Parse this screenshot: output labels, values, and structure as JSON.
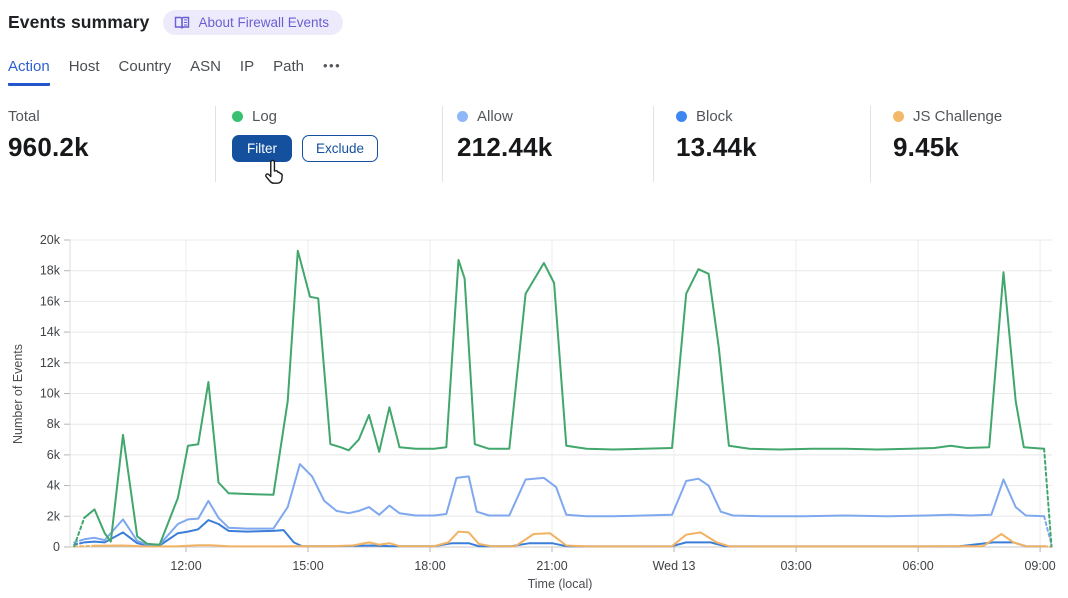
{
  "header": {
    "title": "Events summary",
    "badge_label": "About Firewall Events",
    "badge_icon": "book-icon"
  },
  "tabs": {
    "items": [
      {
        "label": "Action",
        "active": true
      },
      {
        "label": "Host",
        "active": false
      },
      {
        "label": "Country",
        "active": false
      },
      {
        "label": "ASN",
        "active": false
      },
      {
        "label": "IP",
        "active": false
      },
      {
        "label": "Path",
        "active": false
      }
    ],
    "overflow_label": "•••"
  },
  "stats": [
    {
      "label": "Total",
      "value": "960.2k"
    },
    {
      "label": "Log",
      "dot_color": "#38c172",
      "filter_label": "Filter",
      "exclude_label": "Exclude"
    },
    {
      "label": "Allow",
      "value": "212.44k",
      "dot_color": "#8fb7f8"
    },
    {
      "label": "Block",
      "value": "13.44k",
      "dot_color": "#3e87f2"
    },
    {
      "label": "JS Challenge",
      "value": "9.45k",
      "dot_color": "#f2b968"
    }
  ],
  "cursor_icon": "hand-pointer-icon",
  "chart_data": {
    "type": "line",
    "xlabel": "Time (local)",
    "ylabel": "Number of Events",
    "ylim": [
      0,
      20000
    ],
    "value_unit": "thousands of events",
    "x_unit": "hours (local clock, 24 = Wed 13 00:00)",
    "grid": true,
    "legend_position": "stat-cards-above",
    "yticks": [
      {
        "v": 0,
        "label": "0"
      },
      {
        "v": 2,
        "label": "2k"
      },
      {
        "v": 4,
        "label": "4k"
      },
      {
        "v": 6,
        "label": "6k"
      },
      {
        "v": 8,
        "label": "8k"
      },
      {
        "v": 10,
        "label": "10k"
      },
      {
        "v": 12,
        "label": "12k"
      },
      {
        "v": 14,
        "label": "14k"
      },
      {
        "v": 16,
        "label": "16k"
      },
      {
        "v": 18,
        "label": "18k"
      },
      {
        "v": 20,
        "label": "20k"
      }
    ],
    "xticks": [
      {
        "t": 12,
        "label": "12:00"
      },
      {
        "t": 15,
        "label": "15:00"
      },
      {
        "t": 18,
        "label": "18:00"
      },
      {
        "t": 21,
        "label": "21:00"
      },
      {
        "t": 24,
        "label": "Wed 13"
      },
      {
        "t": 27,
        "label": "03:00"
      },
      {
        "t": 30,
        "label": "06:00"
      },
      {
        "t": 33,
        "label": "09:00"
      }
    ],
    "series": [
      {
        "name": "Block",
        "color": "#3b7ed9",
        "points": [
          [
            9.25,
            0.15
          ],
          [
            9.5,
            0.3
          ],
          [
            9.75,
            0.35
          ],
          [
            10.0,
            0.3
          ],
          [
            10.45,
            0.95
          ],
          [
            10.8,
            0.25
          ],
          [
            11.05,
            0.1
          ],
          [
            11.35,
            0.1
          ],
          [
            11.8,
            0.9
          ],
          [
            12.05,
            1.0
          ],
          [
            12.3,
            1.15
          ],
          [
            12.55,
            1.75
          ],
          [
            12.8,
            1.5
          ],
          [
            13.05,
            1.05
          ],
          [
            13.5,
            1.0
          ],
          [
            14.15,
            1.05
          ],
          [
            14.4,
            1.1
          ],
          [
            14.65,
            0.3
          ],
          [
            14.85,
            0.06
          ],
          [
            15.5,
            0.05
          ],
          [
            16.25,
            0.08
          ],
          [
            16.55,
            0.1
          ],
          [
            17.0,
            0.06
          ],
          [
            18.1,
            0.05
          ],
          [
            18.55,
            0.25
          ],
          [
            18.95,
            0.25
          ],
          [
            19.2,
            0.05
          ],
          [
            20.0,
            0.05
          ],
          [
            20.45,
            0.25
          ],
          [
            21.0,
            0.25
          ],
          [
            21.35,
            0.05
          ],
          [
            22.5,
            0.04
          ],
          [
            23.95,
            0.05
          ],
          [
            24.3,
            0.3
          ],
          [
            24.9,
            0.3
          ],
          [
            25.25,
            0.05
          ],
          [
            26.6,
            0.04
          ],
          [
            28.2,
            0.04
          ],
          [
            29.8,
            0.04
          ],
          [
            31.0,
            0.04
          ],
          [
            31.85,
            0.3
          ],
          [
            32.35,
            0.3
          ],
          [
            32.65,
            0.05
          ],
          [
            33.1,
            0.04
          ],
          [
            33.28,
            0.02
          ]
        ]
      },
      {
        "name": "JS Challenge",
        "color": "#f2b263",
        "points": [
          [
            9.25,
            0.03
          ],
          [
            9.75,
            0.08
          ],
          [
            10.45,
            0.1
          ],
          [
            11.05,
            0.03
          ],
          [
            11.8,
            0.05
          ],
          [
            12.3,
            0.12
          ],
          [
            12.6,
            0.12
          ],
          [
            13.05,
            0.05
          ],
          [
            14.15,
            0.04
          ],
          [
            14.8,
            0.05
          ],
          [
            15.5,
            0.05
          ],
          [
            16.1,
            0.1
          ],
          [
            16.5,
            0.3
          ],
          [
            16.75,
            0.15
          ],
          [
            17.0,
            0.25
          ],
          [
            17.25,
            0.06
          ],
          [
            18.1,
            0.05
          ],
          [
            18.45,
            0.3
          ],
          [
            18.7,
            1.0
          ],
          [
            18.95,
            0.95
          ],
          [
            19.2,
            0.2
          ],
          [
            19.5,
            0.05
          ],
          [
            20.1,
            0.05
          ],
          [
            20.55,
            0.85
          ],
          [
            20.95,
            0.9
          ],
          [
            21.35,
            0.1
          ],
          [
            21.85,
            0.04
          ],
          [
            23.0,
            0.04
          ],
          [
            23.95,
            0.05
          ],
          [
            24.3,
            0.8
          ],
          [
            24.65,
            0.95
          ],
          [
            25.05,
            0.3
          ],
          [
            25.35,
            0.05
          ],
          [
            26.6,
            0.04
          ],
          [
            28.2,
            0.04
          ],
          [
            29.8,
            0.04
          ],
          [
            30.8,
            0.05
          ],
          [
            31.6,
            0.05
          ],
          [
            32.05,
            0.85
          ],
          [
            32.35,
            0.3
          ],
          [
            32.65,
            0.05
          ],
          [
            33.1,
            0.04
          ],
          [
            33.28,
            0.02
          ]
        ]
      },
      {
        "name": "Allow",
        "color": "#7fa8ef",
        "points": [
          [
            9.25,
            0.3
          ],
          [
            9.5,
            0.5
          ],
          [
            9.75,
            0.6
          ],
          [
            10.0,
            0.45
          ],
          [
            10.45,
            1.8
          ],
          [
            10.8,
            0.4
          ],
          [
            11.05,
            0.15
          ],
          [
            11.35,
            0.15
          ],
          [
            11.8,
            1.5
          ],
          [
            12.05,
            1.8
          ],
          [
            12.3,
            1.85
          ],
          [
            12.55,
            3.0
          ],
          [
            12.8,
            1.9
          ],
          [
            13.05,
            1.25
          ],
          [
            13.5,
            1.2
          ],
          [
            14.15,
            1.2
          ],
          [
            14.5,
            2.6
          ],
          [
            14.8,
            5.4
          ],
          [
            15.1,
            4.6
          ],
          [
            15.4,
            3.0
          ],
          [
            15.7,
            2.35
          ],
          [
            16.0,
            2.2
          ],
          [
            16.25,
            2.35
          ],
          [
            16.5,
            2.6
          ],
          [
            16.75,
            2.1
          ],
          [
            17.0,
            2.7
          ],
          [
            17.25,
            2.2
          ],
          [
            17.65,
            2.05
          ],
          [
            18.1,
            2.05
          ],
          [
            18.4,
            2.15
          ],
          [
            18.65,
            4.5
          ],
          [
            18.95,
            4.6
          ],
          [
            19.15,
            2.3
          ],
          [
            19.45,
            2.05
          ],
          [
            19.95,
            2.05
          ],
          [
            20.35,
            4.4
          ],
          [
            20.8,
            4.5
          ],
          [
            21.1,
            3.9
          ],
          [
            21.35,
            2.1
          ],
          [
            21.85,
            2.0
          ],
          [
            22.5,
            2.0
          ],
          [
            23.25,
            2.05
          ],
          [
            23.95,
            2.1
          ],
          [
            24.3,
            4.3
          ],
          [
            24.6,
            4.45
          ],
          [
            24.85,
            4.0
          ],
          [
            25.15,
            2.3
          ],
          [
            25.45,
            2.05
          ],
          [
            26.2,
            2.0
          ],
          [
            27.2,
            2.0
          ],
          [
            28.2,
            2.05
          ],
          [
            29.2,
            2.0
          ],
          [
            30.2,
            2.05
          ],
          [
            30.8,
            2.1
          ],
          [
            31.3,
            2.05
          ],
          [
            31.8,
            2.1
          ],
          [
            32.1,
            4.4
          ],
          [
            32.4,
            2.6
          ],
          [
            32.65,
            2.05
          ],
          [
            33.1,
            2.0
          ],
          [
            33.28,
            0.15
          ]
        ]
      },
      {
        "name": "Log",
        "color": "#41a76c",
        "points": [
          [
            9.25,
            0.05
          ],
          [
            9.5,
            1.9
          ],
          [
            9.75,
            2.45
          ],
          [
            10.0,
            0.9
          ],
          [
            10.15,
            0.35
          ],
          [
            10.45,
            7.3
          ],
          [
            10.8,
            0.7
          ],
          [
            11.05,
            0.2
          ],
          [
            11.35,
            0.15
          ],
          [
            11.8,
            3.2
          ],
          [
            12.05,
            6.6
          ],
          [
            12.3,
            6.7
          ],
          [
            12.55,
            10.75
          ],
          [
            12.8,
            4.2
          ],
          [
            13.05,
            3.5
          ],
          [
            13.5,
            3.45
          ],
          [
            14.15,
            3.4
          ],
          [
            14.5,
            9.5
          ],
          [
            14.75,
            19.3
          ],
          [
            15.05,
            16.3
          ],
          [
            15.25,
            16.2
          ],
          [
            15.55,
            6.7
          ],
          [
            15.8,
            6.5
          ],
          [
            16.0,
            6.3
          ],
          [
            16.25,
            7.0
          ],
          [
            16.5,
            8.6
          ],
          [
            16.75,
            6.2
          ],
          [
            17.0,
            9.1
          ],
          [
            17.25,
            6.5
          ],
          [
            17.65,
            6.4
          ],
          [
            18.1,
            6.4
          ],
          [
            18.4,
            6.5
          ],
          [
            18.7,
            18.7
          ],
          [
            18.85,
            17.5
          ],
          [
            19.1,
            6.7
          ],
          [
            19.45,
            6.4
          ],
          [
            19.95,
            6.4
          ],
          [
            20.35,
            16.5
          ],
          [
            20.8,
            18.5
          ],
          [
            21.05,
            17.2
          ],
          [
            21.35,
            6.6
          ],
          [
            21.85,
            6.4
          ],
          [
            22.5,
            6.35
          ],
          [
            23.25,
            6.4
          ],
          [
            23.95,
            6.45
          ],
          [
            24.3,
            16.5
          ],
          [
            24.6,
            18.1
          ],
          [
            24.85,
            17.8
          ],
          [
            25.1,
            13.0
          ],
          [
            25.35,
            6.6
          ],
          [
            25.85,
            6.4
          ],
          [
            26.6,
            6.35
          ],
          [
            27.4,
            6.4
          ],
          [
            28.2,
            6.4
          ],
          [
            29.0,
            6.35
          ],
          [
            29.8,
            6.4
          ],
          [
            30.4,
            6.45
          ],
          [
            30.8,
            6.6
          ],
          [
            31.2,
            6.45
          ],
          [
            31.75,
            6.5
          ],
          [
            32.1,
            17.9
          ],
          [
            32.4,
            9.5
          ],
          [
            32.6,
            6.5
          ],
          [
            33.1,
            6.4
          ],
          [
            33.28,
            0.05
          ]
        ]
      }
    ]
  }
}
